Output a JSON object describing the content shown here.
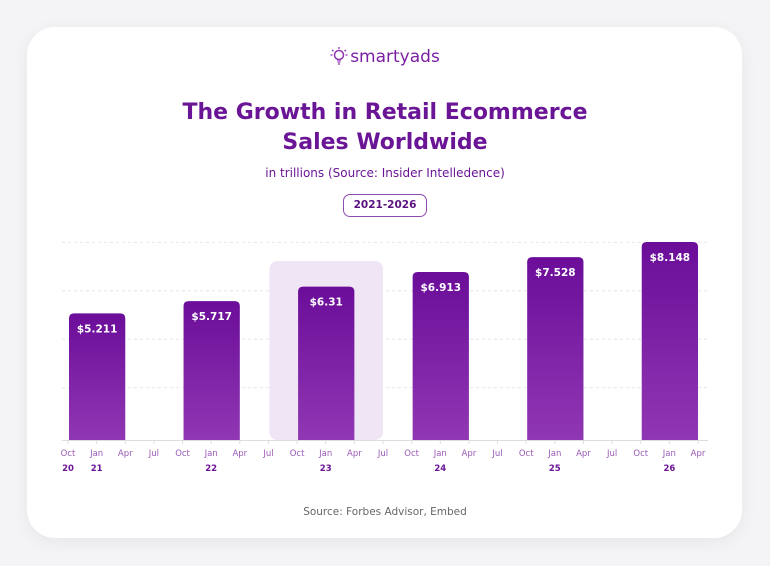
{
  "brand": {
    "name": "smartyads",
    "icon": "lightbulb-icon"
  },
  "colors": {
    "bar_top": "#6b0d99",
    "bar_bottom": "#9037b3",
    "highlight": "#efe5f4",
    "text": "#6a1596",
    "axis_label": "#9b59b6"
  },
  "chart_data": {
    "type": "bar",
    "title": "The Growth in Retail Ecommerce Sales Worldwide",
    "subtitle": "in trillions (Source: Insider Intelledence)",
    "badge": "2021-2026",
    "categories": [
      "21",
      "22",
      "23",
      "24",
      "25",
      "26"
    ],
    "values": [
      5.211,
      5.717,
      6.31,
      6.913,
      7.528,
      8.148
    ],
    "data_labels": [
      "$5.211",
      "$5.717",
      "$6.31",
      "$6.913",
      "$7.528",
      "$8.148"
    ],
    "highlighted_category": "23",
    "x_ticks": [
      "Oct",
      "Jan",
      "Apr",
      "Jul",
      "Oct",
      "Jan",
      "Apr",
      "Jul",
      "Oct",
      "Jan",
      "Apr",
      "Jul",
      "Oct",
      "Jan",
      "Apr",
      "Jul",
      "Oct",
      "Jan",
      "Apr",
      "Jul",
      "Oct",
      "Jan",
      "Apr"
    ],
    "x_year_labels": [
      {
        "tick": 0,
        "label": "20"
      },
      {
        "tick": 1,
        "label": "21"
      },
      {
        "tick": 5,
        "label": "22"
      },
      {
        "tick": 9,
        "label": "23"
      },
      {
        "tick": 13,
        "label": "24"
      },
      {
        "tick": 17,
        "label": "25"
      },
      {
        "tick": 21,
        "label": "26"
      }
    ],
    "ylim": [
      0,
      8.2
    ],
    "grid": true,
    "legend": "none"
  },
  "footer": {
    "source": "Source: Forbes Advisor, Embed"
  }
}
